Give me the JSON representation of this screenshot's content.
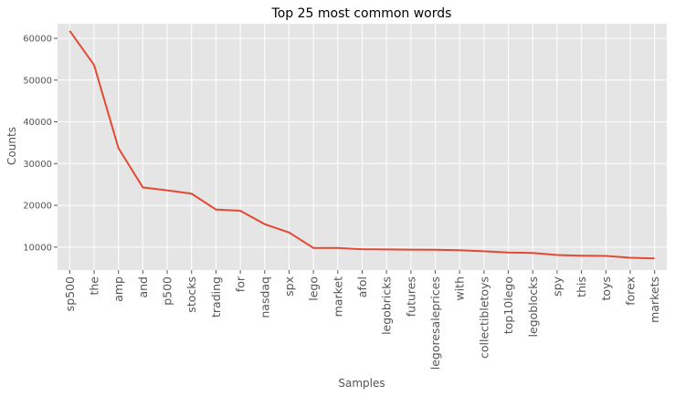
{
  "chart_data": {
    "type": "line",
    "title": "Top 25 most common words",
    "xlabel": "Samples",
    "ylabel": "Counts",
    "ylim": [
      4500,
      63500
    ],
    "yticks": [
      10000,
      20000,
      30000,
      40000,
      50000,
      60000
    ],
    "grid": true,
    "line_color": "#E24A33",
    "background_color": "#E5E5E5",
    "grid_color": "#FFFFFF",
    "categories": [
      "sp500",
      "the",
      "amp",
      "and",
      "p500",
      "stocks",
      "trading",
      "for",
      "nasdaq",
      "spx",
      "lego",
      "market",
      "afol",
      "legobricks",
      "futures",
      "legoresaleprices",
      "with",
      "collectibletoys",
      "top10lego",
      "legoblocks",
      "spy",
      "this",
      "toys",
      "forex",
      "markets"
    ],
    "values": [
      61800,
      53600,
      33700,
      24300,
      23600,
      22800,
      19000,
      18700,
      15500,
      13500,
      9800,
      9800,
      9500,
      9450,
      9400,
      9350,
      9250,
      9000,
      8700,
      8600,
      8100,
      7950,
      7900,
      7450,
      7300
    ]
  }
}
